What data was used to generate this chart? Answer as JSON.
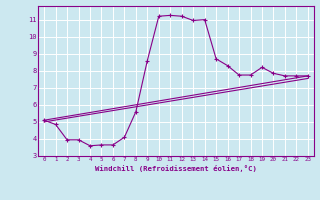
{
  "xlabel": "Windchill (Refroidissement éolien,°C)",
  "bg_color": "#cce8f0",
  "line_color": "#880088",
  "grid_color": "#ffffff",
  "xlim": [
    -0.5,
    23.5
  ],
  "ylim": [
    3,
    11.8
  ],
  "yticks": [
    3,
    4,
    5,
    6,
    7,
    8,
    9,
    10,
    11
  ],
  "xticks": [
    0,
    1,
    2,
    3,
    4,
    5,
    6,
    7,
    8,
    9,
    10,
    11,
    12,
    13,
    14,
    15,
    16,
    17,
    18,
    19,
    20,
    21,
    22,
    23
  ],
  "curve1_x": [
    0,
    1,
    2,
    3,
    4,
    5,
    6,
    7,
    8,
    9,
    10,
    11,
    12,
    13,
    14,
    15,
    16,
    17,
    18,
    19,
    20,
    21,
    22,
    23
  ],
  "curve1_y": [
    5.1,
    4.85,
    3.95,
    3.95,
    3.6,
    3.65,
    3.65,
    4.1,
    5.6,
    8.6,
    11.2,
    11.25,
    11.2,
    10.95,
    11.0,
    8.7,
    8.3,
    7.75,
    7.75,
    8.2,
    7.85,
    7.7,
    7.7,
    7.7
  ],
  "curve2_x": [
    0,
    23
  ],
  "curve2_y": [
    5.1,
    7.7
  ],
  "curve3_x": [
    0,
    23
  ],
  "curve3_y": [
    5.0,
    7.55
  ]
}
